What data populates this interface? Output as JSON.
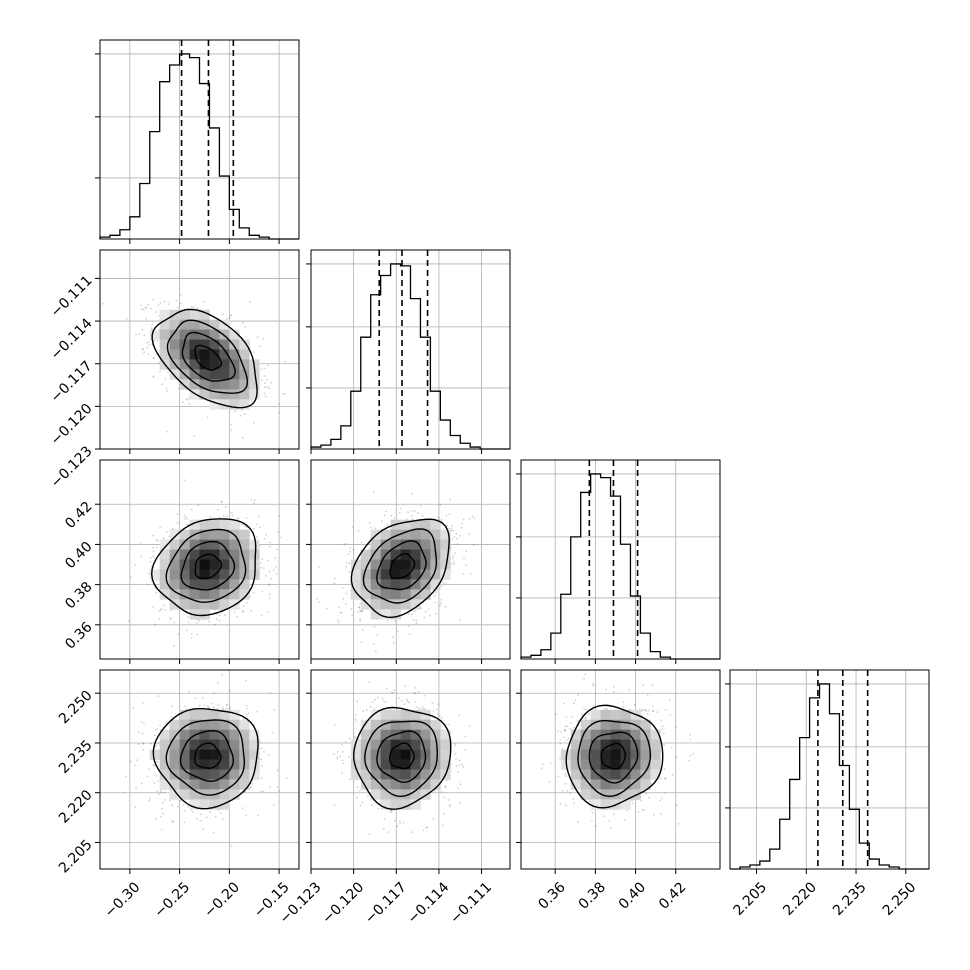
{
  "chart_data": {
    "type": "corner",
    "grid": true,
    "quantiles": [
      0.16,
      0.5,
      0.84
    ],
    "params": [
      {
        "range": [
          -0.33,
          -0.13
        ],
        "ticks": [
          -0.3,
          -0.25,
          -0.2,
          -0.15
        ],
        "tick_labels": [
          "−0.30",
          "−0.25",
          "−0.20",
          "−0.15"
        ],
        "mean": -0.222,
        "sd": 0.026,
        "quantile_values": [
          -0.248,
          -0.221,
          -0.196
        ],
        "hist_counts": [
          1,
          2,
          5,
          12,
          30,
          58,
          85,
          94,
          100,
          98,
          84,
          60,
          34,
          16,
          6,
          2,
          1,
          0,
          0,
          0
        ]
      },
      {
        "range": [
          -0.123,
          -0.109
        ],
        "ticks": [
          -0.123,
          -0.12,
          -0.117,
          -0.114,
          -0.111
        ],
        "tick_labels": [
          "−0.123",
          "−0.120",
          "−0.117",
          "−0.114",
          "−0.111"
        ],
        "mean": -0.1166,
        "sd": 0.0017,
        "quantile_values": [
          -0.1182,
          -0.1166,
          -0.1148
        ],
        "hist_counts": [
          1,
          2,
          5,
          12,
          30,
          58,
          80,
          90,
          96,
          95,
          78,
          58,
          30,
          15,
          7,
          3,
          1,
          0,
          0,
          0
        ]
      },
      {
        "range": [
          0.343,
          0.442
        ],
        "ticks": [
          0.36,
          0.38,
          0.4,
          0.42
        ],
        "tick_labels": [
          "0.36",
          "0.38",
          "0.40",
          "0.42"
        ],
        "mean": 0.389,
        "sd": 0.012,
        "quantile_values": [
          0.377,
          0.389,
          0.401
        ],
        "hist_counts": [
          1,
          2,
          5,
          14,
          35,
          66,
          90,
          100,
          98,
          88,
          62,
          34,
          14,
          4,
          1,
          0,
          0,
          0,
          0,
          0
        ]
      },
      {
        "range": [
          2.197,
          2.257
        ],
        "ticks": [
          2.205,
          2.22,
          2.235,
          2.25
        ],
        "tick_labels": [
          "2.205",
          "2.220",
          "2.235",
          "2.250"
        ],
        "mean": 2.231,
        "sd": 0.0075,
        "quantile_values": [
          2.2235,
          2.231,
          2.2385
        ],
        "hist_counts": [
          0,
          1,
          2,
          4,
          10,
          25,
          45,
          66,
          86,
          93,
          78,
          52,
          30,
          13,
          5,
          2,
          1,
          0,
          0,
          0
        ]
      }
    ],
    "scatter": [
      {
        "row": 1,
        "col": 0,
        "correlation": -0.45
      },
      {
        "row": 2,
        "col": 0,
        "correlation": 0.15
      },
      {
        "row": 2,
        "col": 1,
        "correlation": 0.3
      },
      {
        "row": 3,
        "col": 0,
        "correlation": 0.0
      },
      {
        "row": 3,
        "col": 1,
        "correlation": 0.05
      },
      {
        "row": 3,
        "col": 2,
        "correlation": 0.05
      }
    ]
  }
}
